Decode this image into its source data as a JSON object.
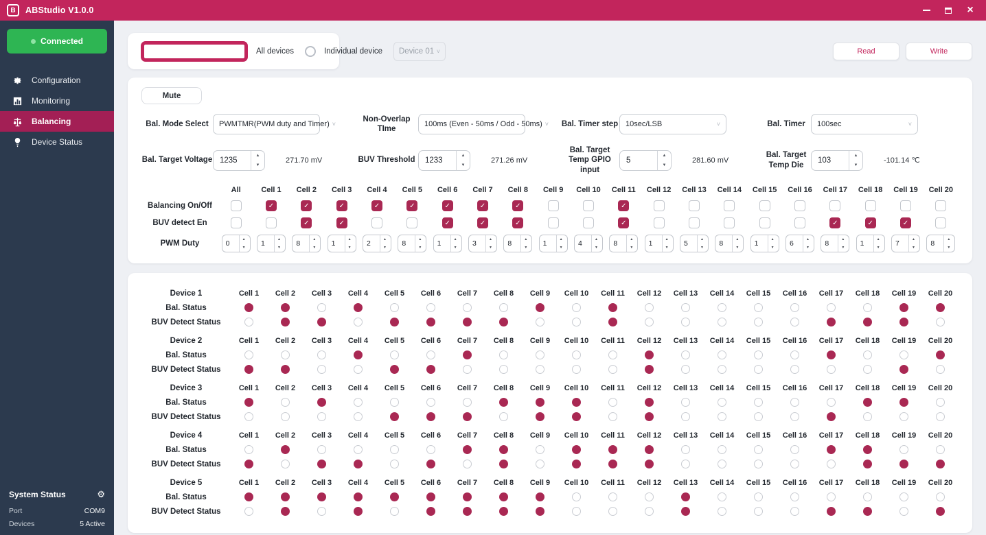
{
  "app": {
    "title": "ABStudio V1.0.0"
  },
  "actions": {
    "read": "Read",
    "write": "Write"
  },
  "colors": {
    "titlebar": "#C2255C",
    "sidebar": "#2C3A4E",
    "nav_active": "#A31F55",
    "connected_green": "#2EB553",
    "accent_fill": "#A92853"
  },
  "sidebar": {
    "connection_status": "Connected",
    "items": [
      {
        "label": "Configuration",
        "icon": "gear",
        "active": false
      },
      {
        "label": "Monitoring",
        "icon": "chart",
        "active": false
      },
      {
        "label": "Balancing",
        "icon": "balance",
        "active": true
      },
      {
        "label": "Device Status",
        "icon": "pin",
        "active": false
      }
    ],
    "system_status": {
      "title": "System Status",
      "gear_icon": "⚙",
      "rows": [
        {
          "label": "Port",
          "value": "COM9"
        },
        {
          "label": "Devices",
          "value": "5 Active"
        }
      ]
    }
  },
  "device_select": {
    "all_label": "All devices",
    "individual_label": "Individual device",
    "selected": "all",
    "dropdown_value": "Device 01"
  },
  "balancing_panel": {
    "mute_label": "Mute",
    "selects": [
      {
        "label": "Bal. Mode Select",
        "value": "PWMTMR(PWM duty and Timer)"
      },
      {
        "label": "Non-Overlap TIme",
        "value": "100ms (Even - 50ms / Odd - 50ms)"
      },
      {
        "label": "Bal. Timer step",
        "value": "10sec/LSB"
      },
      {
        "label": "Bal. Timer",
        "value": "100sec"
      }
    ],
    "numerics": [
      {
        "label": "Bal. Target Voltage",
        "value": "1235",
        "converted": "271.70 mV"
      },
      {
        "label": "BUV Threshold",
        "value": "1233",
        "converted": "271.26 mV"
      },
      {
        "label": "Bal. Target Temp GPIO input",
        "value": "5",
        "converted": "281.60 mV"
      },
      {
        "label": "Bal. Target Temp Die",
        "value": "103",
        "converted": "-101.14 ℃"
      }
    ],
    "grid": {
      "columns": [
        "All",
        "Cell 1",
        "Cell 2",
        "Cell 3",
        "Cell 4",
        "Cell 5",
        "Cell 6",
        "Cell 7",
        "Cell 8",
        "Cell 9",
        "Cell 10",
        "Cell 11",
        "Cell 12",
        "Cell 13",
        "Cell 14",
        "Cell 15",
        "Cell 16",
        "Cell 17",
        "Cell 18",
        "Cell 19",
        "Cell 20"
      ],
      "balancing_on_off": {
        "label": "Balancing On/Off",
        "values": [
          0,
          1,
          1,
          1,
          1,
          1,
          1,
          1,
          1,
          0,
          0,
          1,
          0,
          0,
          0,
          0,
          0,
          0,
          0,
          0,
          0
        ]
      },
      "buv_detect_en": {
        "label": "BUV detect En",
        "values": [
          0,
          0,
          1,
          1,
          0,
          0,
          1,
          1,
          1,
          0,
          0,
          1,
          0,
          0,
          0,
          0,
          0,
          1,
          1,
          1,
          0
        ]
      },
      "pwm_duty": {
        "label": "PWM Duty",
        "values": [
          "0",
          "1",
          "8",
          "1",
          "2",
          "8",
          "1",
          "3",
          "8",
          "1",
          "4",
          "8",
          "1",
          "5",
          "8",
          "1",
          "6",
          "8",
          "1",
          "7",
          "8"
        ]
      }
    }
  },
  "status_panel": {
    "cell_columns": [
      "Cell 1",
      "Cell 2",
      "Cell 3",
      "Cell 4",
      "Cell 5",
      "Cell 6",
      "Cell 7",
      "Cell 8",
      "Cell 9",
      "Cell 10",
      "Cell 11",
      "Cell 12",
      "Cell 13",
      "Cell 14",
      "Cell 15",
      "Cell 16",
      "Cell 17",
      "Cell 18",
      "Cell 19",
      "Cell 20"
    ],
    "bal_label": "Bal. Status",
    "buv_label": "BUV Detect Status",
    "devices": [
      {
        "name": "Device 1",
        "bal": [
          1,
          1,
          0,
          1,
          0,
          0,
          0,
          0,
          1,
          0,
          1,
          0,
          0,
          0,
          0,
          0,
          0,
          0,
          1,
          1
        ],
        "buv": [
          0,
          1,
          1,
          0,
          1,
          1,
          1,
          1,
          0,
          0,
          1,
          0,
          0,
          0,
          0,
          0,
          1,
          1,
          1,
          0
        ]
      },
      {
        "name": "Device 2",
        "bal": [
          0,
          0,
          0,
          1,
          0,
          0,
          1,
          0,
          0,
          0,
          0,
          1,
          0,
          0,
          0,
          0,
          1,
          0,
          0,
          1
        ],
        "buv": [
          1,
          1,
          0,
          0,
          1,
          1,
          0,
          0,
          0,
          0,
          0,
          1,
          0,
          0,
          0,
          0,
          0,
          0,
          1,
          0
        ]
      },
      {
        "name": "Device 3",
        "bal": [
          1,
          0,
          1,
          0,
          0,
          0,
          0,
          1,
          1,
          1,
          0,
          1,
          0,
          0,
          0,
          0,
          0,
          1,
          1,
          0
        ],
        "buv": [
          0,
          0,
          0,
          0,
          1,
          1,
          1,
          0,
          1,
          1,
          0,
          1,
          0,
          0,
          0,
          0,
          1,
          0,
          0,
          0
        ]
      },
      {
        "name": "Device 4",
        "bal": [
          0,
          1,
          0,
          0,
          0,
          0,
          1,
          1,
          0,
          1,
          1,
          1,
          0,
          0,
          0,
          0,
          1,
          1,
          0,
          0
        ],
        "buv": [
          1,
          0,
          1,
          1,
          0,
          1,
          0,
          1,
          0,
          1,
          1,
          1,
          0,
          0,
          0,
          0,
          0,
          1,
          1,
          1
        ]
      },
      {
        "name": "Device 5",
        "bal": [
          1,
          1,
          1,
          1,
          1,
          1,
          1,
          1,
          1,
          0,
          0,
          0,
          1,
          0,
          0,
          0,
          0,
          0,
          0,
          0
        ],
        "buv": [
          0,
          1,
          0,
          1,
          0,
          1,
          1,
          1,
          1,
          0,
          0,
          0,
          1,
          0,
          0,
          0,
          1,
          1,
          0,
          1
        ]
      }
    ]
  }
}
